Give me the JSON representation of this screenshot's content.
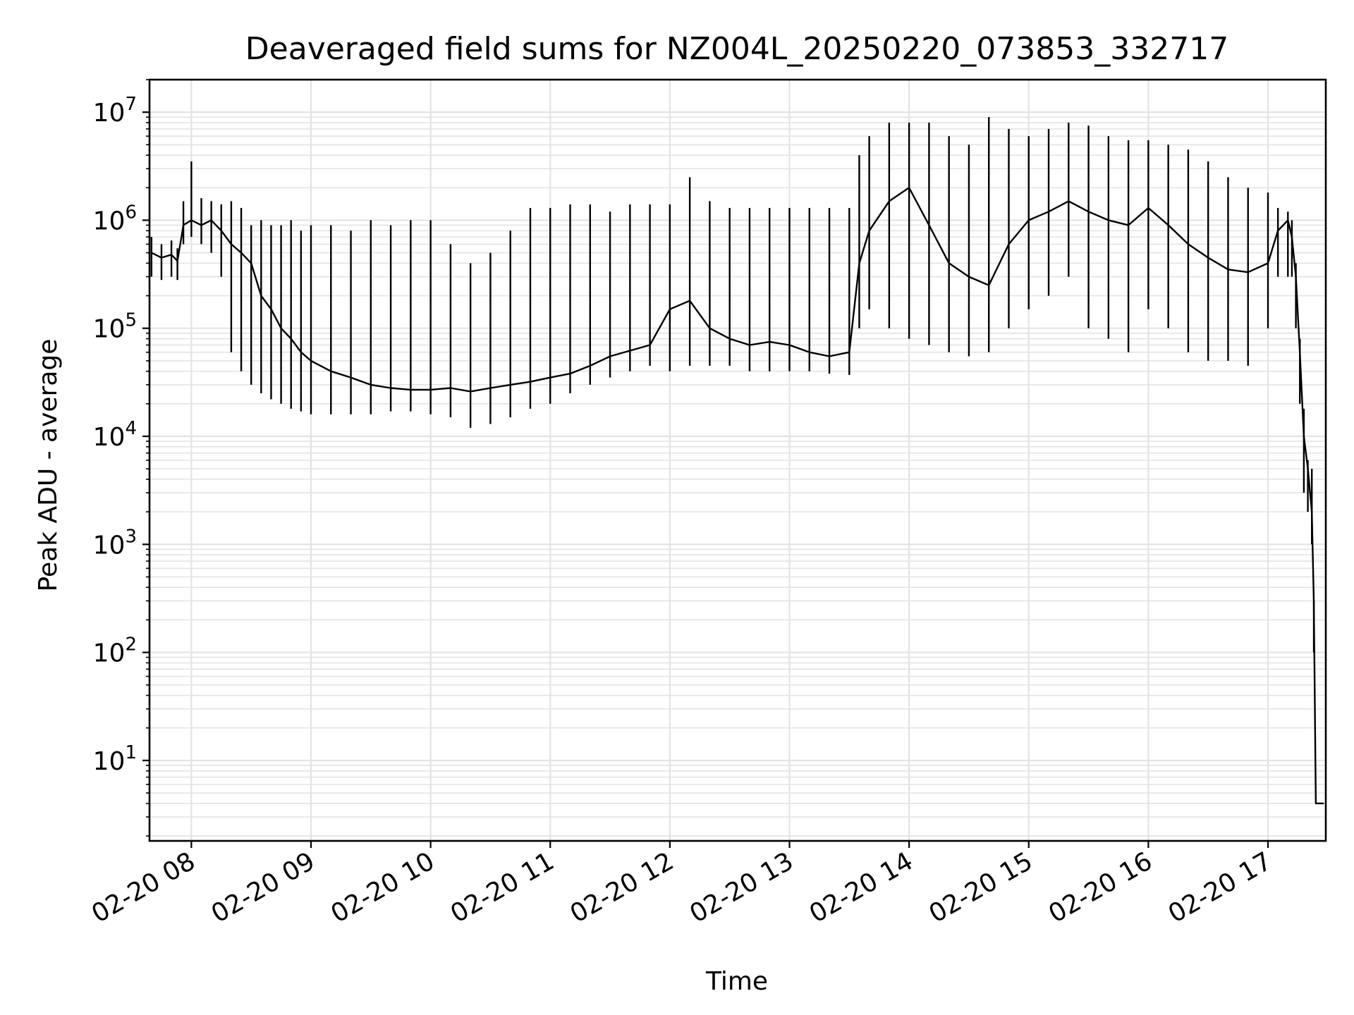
{
  "chart_data": {
    "type": "line",
    "title": "Deaveraged field sums for NZ004L_20250220_073853_332717",
    "xlabel": "Time",
    "ylabel": "Peak ADU - average",
    "yscale": "log",
    "ylim": [
      1.8,
      20000000
    ],
    "xlim": [
      "2025-02-20T07:39:00",
      "2025-02-20T17:29:00"
    ],
    "grid": "major-and-minor",
    "colors": {
      "line": "#000000",
      "grid": "#e3e3e3",
      "frame": "#000000"
    },
    "x_ticks": [
      {
        "t": "2025-02-20T08:00:00",
        "label": "02-20 08"
      },
      {
        "t": "2025-02-20T09:00:00",
        "label": "02-20 09"
      },
      {
        "t": "2025-02-20T10:00:00",
        "label": "02-20 10"
      },
      {
        "t": "2025-02-20T11:00:00",
        "label": "02-20 11"
      },
      {
        "t": "2025-02-20T12:00:00",
        "label": "02-20 12"
      },
      {
        "t": "2025-02-20T13:00:00",
        "label": "02-20 13"
      },
      {
        "t": "2025-02-20T14:00:00",
        "label": "02-20 14"
      },
      {
        "t": "2025-02-20T15:00:00",
        "label": "02-20 15"
      },
      {
        "t": "2025-02-20T16:00:00",
        "label": "02-20 16"
      },
      {
        "t": "2025-02-20T17:00:00",
        "label": "02-20 17"
      }
    ],
    "y_ticks": [
      {
        "value": 10,
        "base": "10",
        "exp": "1"
      },
      {
        "value": 100,
        "base": "10",
        "exp": "2"
      },
      {
        "value": 1000,
        "base": "10",
        "exp": "3"
      },
      {
        "value": 10000,
        "base": "10",
        "exp": "4"
      },
      {
        "value": 100000,
        "base": "10",
        "exp": "5"
      },
      {
        "value": 1000000,
        "base": "10",
        "exp": "6"
      },
      {
        "value": 10000000,
        "base": "10",
        "exp": "7"
      }
    ],
    "series": [
      {
        "x": [
          "2025-02-20T07:40:00",
          "2025-02-20T07:45:00",
          "2025-02-20T07:50:00",
          "2025-02-20T07:53:00",
          "2025-02-20T07:56:00",
          "2025-02-20T08:00:00",
          "2025-02-20T08:05:00",
          "2025-02-20T08:10:00",
          "2025-02-20T08:15:00",
          "2025-02-20T08:20:00",
          "2025-02-20T08:25:00",
          "2025-02-20T08:30:00",
          "2025-02-20T08:35:00",
          "2025-02-20T08:40:00",
          "2025-02-20T08:45:00",
          "2025-02-20T08:50:00",
          "2025-02-20T08:55:00",
          "2025-02-20T09:00:00",
          "2025-02-20T09:10:00",
          "2025-02-20T09:20:00",
          "2025-02-20T09:30:00",
          "2025-02-20T09:40:00",
          "2025-02-20T09:50:00",
          "2025-02-20T10:00:00",
          "2025-02-20T10:10:00",
          "2025-02-20T10:20:00",
          "2025-02-20T10:30:00",
          "2025-02-20T10:40:00",
          "2025-02-20T10:50:00",
          "2025-02-20T11:00:00",
          "2025-02-20T11:10:00",
          "2025-02-20T11:20:00",
          "2025-02-20T11:30:00",
          "2025-02-20T11:40:00",
          "2025-02-20T11:50:00",
          "2025-02-20T12:00:00",
          "2025-02-20T12:10:00",
          "2025-02-20T12:20:00",
          "2025-02-20T12:30:00",
          "2025-02-20T12:40:00",
          "2025-02-20T12:50:00",
          "2025-02-20T13:00:00",
          "2025-02-20T13:10:00",
          "2025-02-20T13:20:00",
          "2025-02-20T13:30:00",
          "2025-02-20T13:35:00",
          "2025-02-20T13:40:00",
          "2025-02-20T13:50:00",
          "2025-02-20T14:00:00",
          "2025-02-20T14:10:00",
          "2025-02-20T14:20:00",
          "2025-02-20T14:30:00",
          "2025-02-20T14:40:00",
          "2025-02-20T14:50:00",
          "2025-02-20T15:00:00",
          "2025-02-20T15:10:00",
          "2025-02-20T15:20:00",
          "2025-02-20T15:30:00",
          "2025-02-20T15:40:00",
          "2025-02-20T15:50:00",
          "2025-02-20T16:00:00",
          "2025-02-20T16:10:00",
          "2025-02-20T16:20:00",
          "2025-02-20T16:30:00",
          "2025-02-20T16:40:00",
          "2025-02-20T16:50:00",
          "2025-02-20T17:00:00",
          "2025-02-20T17:05:00",
          "2025-02-20T17:10:00",
          "2025-02-20T17:12:00",
          "2025-02-20T17:14:00",
          "2025-02-20T17:16:00",
          "2025-02-20T17:18:00",
          "2025-02-20T17:20:00",
          "2025-02-20T17:22:00",
          "2025-02-20T17:23:00",
          "2025-02-20T17:24:00",
          "2025-02-20T17:26:00",
          "2025-02-20T17:28:00"
        ],
        "y": [
          500000,
          450000,
          480000,
          420000,
          900000,
          1000000,
          900000,
          1000000,
          800000,
          600000,
          500000,
          400000,
          200000,
          150000,
          100000,
          80000,
          60000,
          50000,
          40000,
          35000,
          30000,
          28000,
          27000,
          27000,
          28000,
          26000,
          28000,
          30000,
          32000,
          35000,
          38000,
          45000,
          55000,
          62000,
          70000,
          150000,
          180000,
          100000,
          80000,
          70000,
          75000,
          70000,
          60000,
          55000,
          60000,
          400000,
          800000,
          1500000,
          2000000,
          900000,
          400000,
          300000,
          250000,
          600000,
          1000000,
          1200000,
          1500000,
          1200000,
          1000000,
          900000,
          1300000,
          900000,
          600000,
          450000,
          350000,
          330000,
          400000,
          800000,
          1000000,
          700000,
          300000,
          60000,
          10000,
          5000,
          2000,
          300,
          4,
          4,
          4
        ],
        "min": [
          300000,
          280000,
          300000,
          280000,
          600000,
          700000,
          600000,
          500000,
          300000,
          60000,
          40000,
          30000,
          25000,
          22000,
          20000,
          18000,
          17000,
          16000,
          16000,
          16000,
          16000,
          17000,
          17000,
          16000,
          15000,
          12000,
          13000,
          15000,
          18000,
          20000,
          25000,
          30000,
          35000,
          40000,
          45000,
          40000,
          45000,
          45000,
          45000,
          40000,
          40000,
          40000,
          40000,
          38000,
          37000,
          100000,
          150000,
          100000,
          80000,
          70000,
          60000,
          55000,
          60000,
          100000,
          150000,
          200000,
          300000,
          100000,
          80000,
          60000,
          150000,
          100000,
          60000,
          50000,
          50000,
          45000,
          100000,
          300000,
          300000,
          300000,
          100000,
          20000,
          3000,
          2000,
          1000,
          100,
          4,
          4,
          4
        ],
        "max": [
          700000,
          600000,
          650000,
          550000,
          1500000,
          3500000,
          1600000,
          1500000,
          1400000,
          1500000,
          1300000,
          900000,
          1000000,
          900000,
          900000,
          1000000,
          800000,
          900000,
          900000,
          800000,
          1000000,
          900000,
          1000000,
          1000000,
          600000,
          400000,
          500000,
          800000,
          1300000,
          1300000,
          1400000,
          1400000,
          1200000,
          1400000,
          1400000,
          1400000,
          2500000,
          1500000,
          1300000,
          1300000,
          1300000,
          1300000,
          1300000,
          1300000,
          1300000,
          4000000,
          6000000,
          8000000,
          8000000,
          8000000,
          6000000,
          5000000,
          9000000,
          7000000,
          6000000,
          7000000,
          8000000,
          7500000,
          6000000,
          5500000,
          5500000,
          5000000,
          4500000,
          3500000,
          2500000,
          2000000,
          1800000,
          1300000,
          1200000,
          1000000,
          400000,
          80000,
          18000,
          6000,
          5000,
          300,
          4,
          4,
          4
        ]
      }
    ]
  }
}
